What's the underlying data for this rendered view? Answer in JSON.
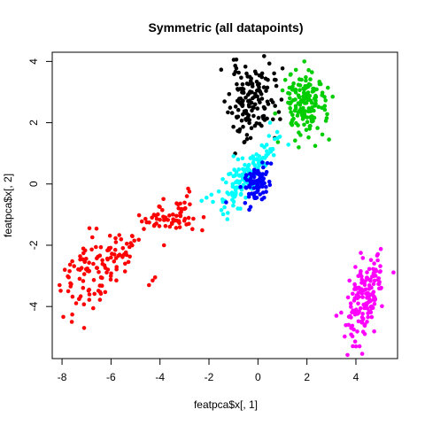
{
  "chart_data": {
    "type": "scatter",
    "title": "Symmetric (all datapoints)",
    "xlabel": "featpca$x[, 1]",
    "ylabel": "featpca$x[, 2]",
    "xlim": [
      -8.4,
      5.7
    ],
    "ylim": [
      -5.7,
      4.3
    ],
    "xticks": [
      -8,
      -6,
      -4,
      -2,
      0,
      2,
      4
    ],
    "yticks": [
      -4,
      -2,
      0,
      2,
      4
    ],
    "grid": false,
    "legend": "none",
    "series": [
      {
        "color": "#000000",
        "clusters": [
          {
            "cx": -0.3,
            "cy": 2.7,
            "sx": 0.45,
            "sy": 0.6,
            "n": 140,
            "rho": 0.0,
            "seed": 11
          }
        ],
        "points": [
          [
            -0.3,
            1.5
          ],
          [
            -0.45,
            1.6
          ],
          [
            0.85,
            2.35
          ],
          [
            0.7,
            2.55
          ]
        ]
      },
      {
        "color": "#00cd00",
        "clusters": [
          {
            "cx": 1.9,
            "cy": 2.6,
            "sx": 0.42,
            "sy": 0.55,
            "n": 150,
            "rho": 0.0,
            "seed": 23
          }
        ],
        "points": [
          [
            2.9,
            1.45
          ],
          [
            3.05,
            2.85
          ],
          [
            1.3,
            2.8
          ],
          [
            0.7,
            2.3
          ]
        ]
      },
      {
        "color": "#00ffff",
        "clusters": [
          {
            "cx": -0.35,
            "cy": 0.4,
            "sx": 0.55,
            "sy": 0.55,
            "n": 140,
            "rho": 0.8,
            "seed": 37
          }
        ],
        "points": [
          [
            -2.1,
            -0.45
          ],
          [
            -1.9,
            -0.35
          ],
          [
            -1.25,
            -1.15
          ],
          [
            -2.3,
            -0.55
          ],
          [
            0.8,
            1.5
          ]
        ]
      },
      {
        "color": "#0000ff",
        "clusters": [
          {
            "cx": -0.1,
            "cy": 0.0,
            "sx": 0.28,
            "sy": 0.28,
            "n": 80,
            "rho": 0.3,
            "seed": 53
          }
        ],
        "points": [
          [
            -1.3,
            -0.6
          ],
          [
            -0.3,
            -0.75
          ],
          [
            0.25,
            -0.45
          ]
        ]
      },
      {
        "color": "#ff0000",
        "clusters": [
          {
            "cx": -3.6,
            "cy": -1.1,
            "sx": 0.6,
            "sy": 0.3,
            "n": 65,
            "rho": 0.3,
            "seed": 71
          },
          {
            "cx": -6.9,
            "cy": -2.9,
            "sx": 0.55,
            "sy": 0.65,
            "n": 90,
            "rho": 0.2,
            "seed": 83
          },
          {
            "cx": -5.6,
            "cy": -2.2,
            "sx": 0.35,
            "sy": 0.35,
            "n": 30,
            "rho": 0.2,
            "seed": 97
          }
        ],
        "points": [
          [
            -4.3,
            -3.15
          ],
          [
            -4.45,
            -3.3
          ],
          [
            -4.2,
            -3.05
          ],
          [
            -7.6,
            -4.5
          ],
          [
            -7.1,
            -4.7
          ],
          [
            -8.1,
            -3.3
          ],
          [
            -2.8,
            -0.25
          ],
          [
            -2.85,
            -0.15
          ],
          [
            -2.9,
            -0.4
          ],
          [
            -5.8,
            -1.9
          ]
        ]
      },
      {
        "color": "#ff00ff",
        "clusters": [
          {
            "cx": 4.4,
            "cy": -3.7,
            "sx": 0.35,
            "sy": 0.65,
            "n": 150,
            "rho": 0.4,
            "seed": 101
          }
        ],
        "points": [
          [
            3.2,
            -4.3
          ],
          [
            3.4,
            -4.2
          ],
          [
            4.0,
            -5.3
          ],
          [
            4.2,
            -2.25
          ],
          [
            5.0,
            -2.85
          ],
          [
            3.7,
            -4.6
          ]
        ]
      }
    ]
  }
}
